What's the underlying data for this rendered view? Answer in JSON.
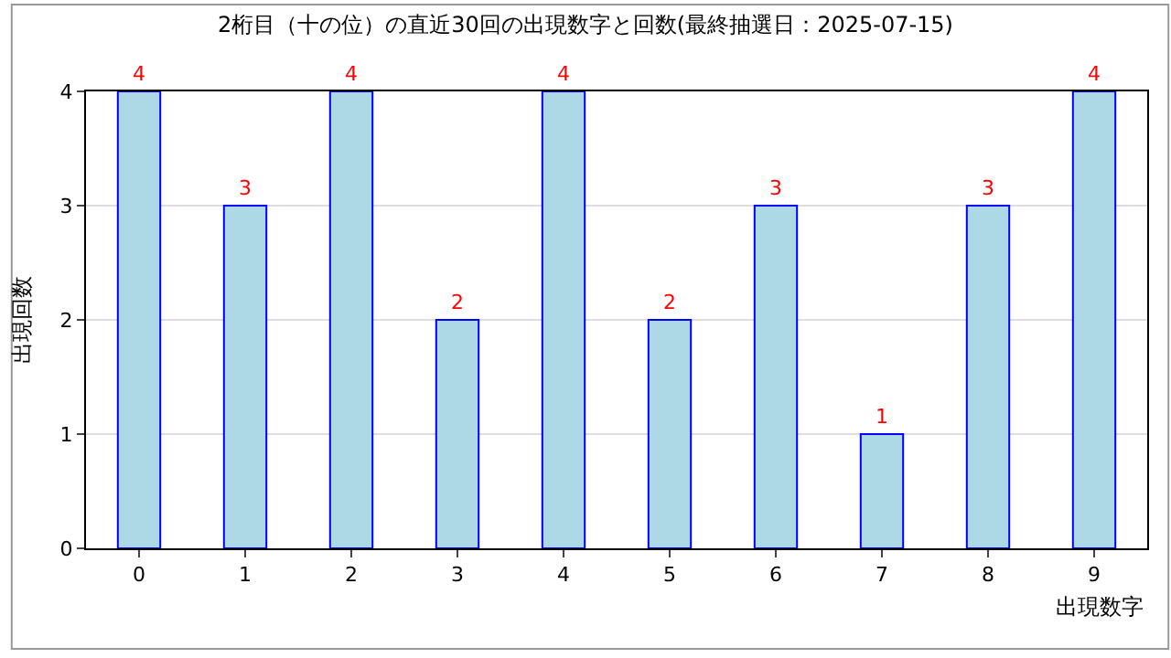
{
  "chart_data": {
    "type": "bar",
    "title": "2桁目（十の位）の直近30回の出現数字と回数(最終抽選日：2025-07-15)",
    "xlabel": "出現数字",
    "ylabel": "出現回数",
    "categories": [
      "0",
      "1",
      "2",
      "3",
      "4",
      "5",
      "6",
      "7",
      "8",
      "9"
    ],
    "series": [
      {
        "color": "#add8e6",
        "values": [
          4,
          3,
          4,
          2,
          4,
          2,
          3,
          1,
          3,
          4
        ]
      }
    ],
    "ylim": [
      0,
      4
    ],
    "yticks": [
      0,
      1,
      2,
      3,
      4
    ],
    "grid": "y",
    "data_labels": true
  }
}
